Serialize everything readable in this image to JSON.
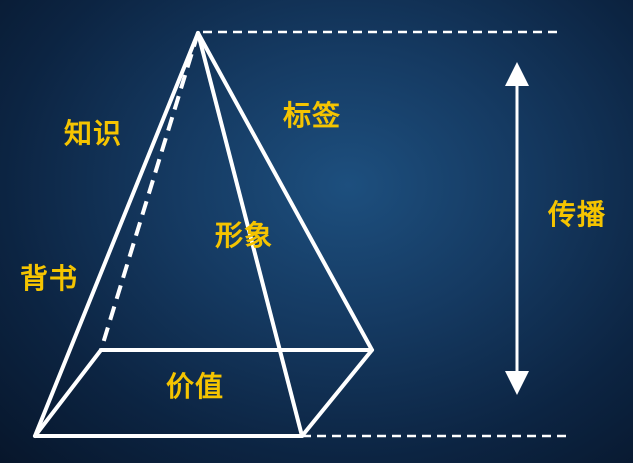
{
  "colors": {
    "line": "#ffffff",
    "label": "#f5c400",
    "background_center": "#1d4f7e",
    "background_edge": "#07162b"
  },
  "labels": {
    "knowledge": "知识",
    "label": "标签",
    "image": "形象",
    "endorsement": "背书",
    "value": "价值",
    "spread": "传播"
  },
  "icons": {
    "height_arrow": "double-headed-vertical-arrow-icon"
  }
}
